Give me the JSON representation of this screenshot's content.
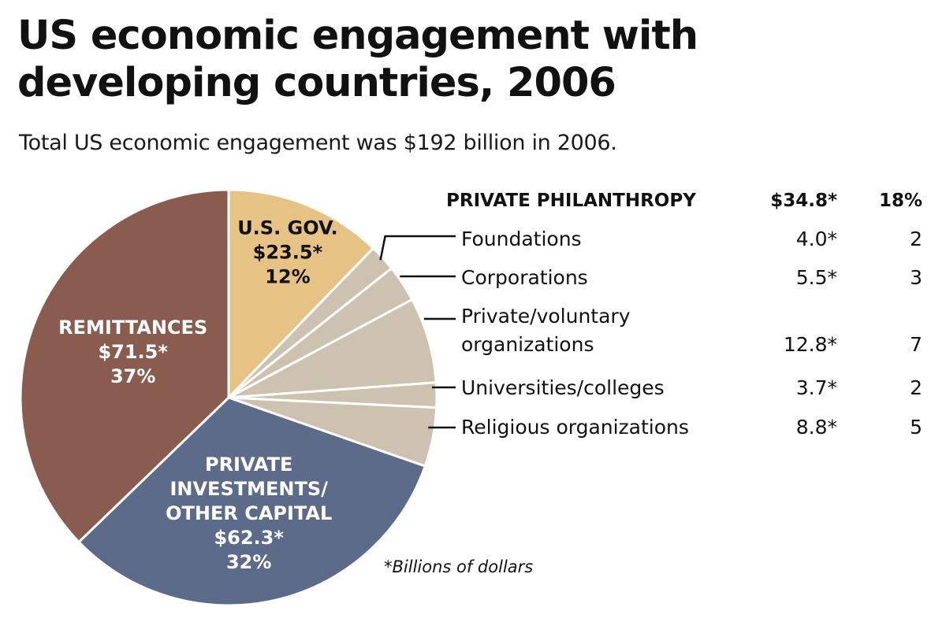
{
  "title_lines": [
    "US economic engagement with",
    "developing countries, 2006"
  ],
  "subtitle": "Total US economic engagement was $192 billion in 2006.",
  "footnote": "*Billions of dollars",
  "colors": {
    "us_gov": "#e6c385",
    "private_philanthropy": "#cdc1af",
    "private_investments": "#5d6b8b",
    "remittances": "#8a5b4f",
    "label_dark": "#111111",
    "label_light": "#ffffff",
    "leader": "#111111"
  },
  "chart_data": {
    "type": "pie",
    "unit_note": "*Billions of dollars",
    "slices": [
      {
        "key": "us_gov",
        "label_lines": [
          "U.S. GOV."
        ],
        "value": 23.5,
        "value_text": "$23.5*",
        "percent_text": "12%",
        "color": "#e6c385",
        "text_color": "#111111"
      },
      {
        "key": "foundations",
        "label_lines": [],
        "value": 4.0,
        "value_text": "",
        "percent_text": "",
        "color": "#cdc1af"
      },
      {
        "key": "corporations",
        "label_lines": [],
        "value": 5.5,
        "value_text": "",
        "percent_text": "",
        "color": "#cdc1af"
      },
      {
        "key": "pvo",
        "label_lines": [],
        "value": 12.8,
        "value_text": "",
        "percent_text": "",
        "color": "#cdc1af"
      },
      {
        "key": "universities",
        "label_lines": [],
        "value": 3.7,
        "value_text": "",
        "percent_text": "",
        "color": "#cdc1af"
      },
      {
        "key": "religious",
        "label_lines": [],
        "value": 8.8,
        "value_text": "",
        "percent_text": "",
        "color": "#cdc1af"
      },
      {
        "key": "private_investments",
        "label_lines": [
          "PRIVATE",
          "INVESTMENTS/",
          "OTHER CAPITAL"
        ],
        "value": 62.3,
        "value_text": "$62.3*",
        "percent_text": "32%",
        "color": "#5d6b8b",
        "text_color": "#ffffff"
      },
      {
        "key": "remittances",
        "label_lines": [
          "REMITTANCES"
        ],
        "value": 71.5,
        "value_text": "$71.5*",
        "percent_text": "37%",
        "color": "#8a5b4f",
        "text_color": "#ffffff"
      }
    ],
    "philanthropy_table": {
      "header": {
        "label": "PRIVATE PHILANTHROPY",
        "value": "$34.8*",
        "percent": "18%"
      },
      "rows": [
        {
          "key": "foundations",
          "label_lines": [
            "Foundations"
          ],
          "value": "4.0*",
          "percent": "2"
        },
        {
          "key": "corporations",
          "label_lines": [
            "Corporations"
          ],
          "value": "5.5*",
          "percent": "3"
        },
        {
          "key": "pvo",
          "label_lines": [
            "Private/voluntary",
            "organizations"
          ],
          "value": "12.8*",
          "percent": "7"
        },
        {
          "key": "universities",
          "label_lines": [
            "Universities/colleges"
          ],
          "value": "3.7*",
          "percent": "2"
        },
        {
          "key": "religious",
          "label_lines": [
            "Religious organizations"
          ],
          "value": "8.8*",
          "percent": "5"
        }
      ]
    }
  }
}
